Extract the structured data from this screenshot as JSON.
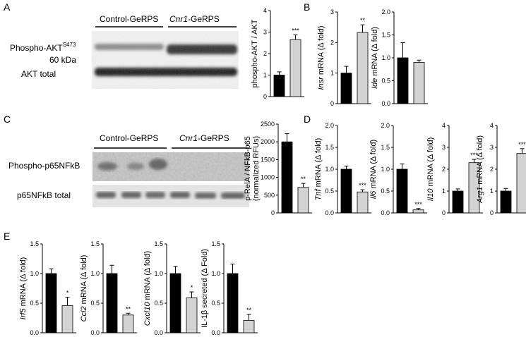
{
  "panels": {
    "A": {
      "letter": "A",
      "blot": {
        "groups": [
          {
            "text": "Control-GeRPS",
            "italic": ""
          },
          {
            "text": "-GeRPS",
            "italic": "Cnr1"
          }
        ],
        "rows": [
          {
            "label": "Phospho-AKT",
            "sup": "S473",
            "sub_label": "60 kDa"
          },
          {
            "label": "AKT total",
            "sup": "",
            "sub_label": ""
          }
        ]
      }
    },
    "B": {
      "letter": "B"
    },
    "C": {
      "letter": "C",
      "blot": {
        "groups": [
          {
            "text": "Control-GeRPS",
            "italic": ""
          },
          {
            "text": "-GeRPS",
            "italic": "Cnr1"
          }
        ],
        "rows": [
          {
            "label": "Phospho-p65NFkB"
          },
          {
            "label": "p65NFkB total"
          }
        ]
      }
    },
    "D": {
      "letter": "D"
    },
    "E": {
      "letter": "E"
    }
  },
  "colors": {
    "control": "#000000",
    "cnr1": "#d3d3d3"
  },
  "chart_data": [
    {
      "id": "A1",
      "type": "bar",
      "ylabel": "phospho-AKT / AKT",
      "ylim": [
        0,
        4
      ],
      "yticks": [
        0,
        1,
        2,
        3,
        4
      ],
      "values": [
        1.0,
        2.65
      ],
      "errors": [
        0.15,
        0.22
      ],
      "stars": [
        "",
        "***"
      ]
    },
    {
      "id": "B1",
      "type": "bar",
      "ylabel_italic": "Insr",
      "ylabel": " mRNA (Δ fold)",
      "ylim": [
        0,
        3
      ],
      "yticks": [
        0,
        1,
        2,
        3
      ],
      "values": [
        1.0,
        2.33
      ],
      "errors": [
        0.22,
        0.25
      ],
      "stars": [
        "",
        "**"
      ]
    },
    {
      "id": "B2",
      "type": "bar",
      "ylabel_italic": "Ide",
      "ylabel": " mRNA (Δ fold)",
      "ylim": [
        0,
        2.0
      ],
      "yticks": [
        0,
        0.5,
        1.0,
        1.5,
        2.0
      ],
      "yticklabels": [
        "0.0",
        "0.5",
        "1.0",
        "1.5",
        "2.0"
      ],
      "values": [
        1.0,
        0.9
      ],
      "errors": [
        0.33,
        0.05
      ],
      "stars": [
        "",
        ""
      ]
    },
    {
      "id": "C1",
      "type": "bar",
      "ylabel": "p-RelA / NFkB-p65",
      "ylabel2": "(normalized RFUs)",
      "ylim": [
        0,
        2500
      ],
      "yticks": [
        0,
        500,
        1000,
        1500,
        2000,
        2500
      ],
      "values": [
        2000,
        720
      ],
      "errors": [
        230,
        110
      ],
      "stars": [
        "",
        "**"
      ]
    },
    {
      "id": "D1",
      "type": "bar",
      "ylabel_italic": "Tnf",
      "ylabel": " mRNA (Δ fold)",
      "ylim": [
        0,
        2.0
      ],
      "yticks": [
        0,
        0.5,
        1.0,
        1.5,
        2.0
      ],
      "yticklabels": [
        "0.0",
        "0.5",
        "1.0",
        "1.5",
        "2.0"
      ],
      "values": [
        1.0,
        0.48
      ],
      "errors": [
        0.07,
        0.05
      ],
      "stars": [
        "",
        "***"
      ]
    },
    {
      "id": "D2",
      "type": "bar",
      "ylabel_italic": "Il6",
      "ylabel": " mRNA (Δ fold)",
      "ylim": [
        0,
        2.0
      ],
      "yticks": [
        0,
        0.5,
        1.0,
        1.5,
        2.0
      ],
      "yticklabels": [
        "0.0",
        "0.5",
        "1.0",
        "1.5",
        "2.0"
      ],
      "values": [
        1.0,
        0.07
      ],
      "errors": [
        0.12,
        0.03
      ],
      "stars": [
        "",
        "***"
      ]
    },
    {
      "id": "D3",
      "type": "bar",
      "ylabel_italic": "Il10",
      "ylabel": " mRNA (Δ fold)",
      "ylim": [
        0,
        4
      ],
      "yticks": [
        0,
        1,
        2,
        3,
        4
      ],
      "values": [
        1.0,
        2.3
      ],
      "errors": [
        0.1,
        0.15
      ],
      "stars": [
        "",
        "***"
      ]
    },
    {
      "id": "D4",
      "type": "bar",
      "ylabel_italic": "Arg1",
      "ylabel": " mRNA (Δ fold)",
      "ylim": [
        0,
        4
      ],
      "yticks": [
        0,
        1,
        2,
        3,
        4
      ],
      "values": [
        1.0,
        2.72
      ],
      "errors": [
        0.12,
        0.22
      ],
      "stars": [
        "",
        "***"
      ]
    },
    {
      "id": "E1",
      "type": "bar",
      "ylabel_italic": "Irf5",
      "ylabel": " mRNA (Δ fold)",
      "ylim": [
        0,
        1.5
      ],
      "yticks": [
        0,
        0.5,
        1.0,
        1.5
      ],
      "yticklabels": [
        "0.0",
        "0.5",
        "1.0",
        "1.5"
      ],
      "values": [
        1.0,
        0.46
      ],
      "errors": [
        0.08,
        0.14
      ],
      "stars": [
        "",
        "*"
      ]
    },
    {
      "id": "E2",
      "type": "bar",
      "ylabel_italic": "Ccl2",
      "ylabel": " mRNA (Δ fold)",
      "ylim": [
        0,
        1.5
      ],
      "yticks": [
        0,
        0.5,
        1.0,
        1.5
      ],
      "yticklabels": [
        "0.0",
        "0.5",
        "1.0",
        "1.5"
      ],
      "values": [
        1.0,
        0.3
      ],
      "errors": [
        0.14,
        0.03
      ],
      "stars": [
        "",
        "**"
      ]
    },
    {
      "id": "E3",
      "type": "bar",
      "ylabel_italic": "Cxcl10",
      "ylabel": " mRNA (Δ fold)",
      "ylim": [
        0,
        1.5
      ],
      "yticks": [
        0,
        0.5,
        1.0,
        1.5
      ],
      "yticklabels": [
        "0.0",
        "0.5",
        "1.0",
        "1.5"
      ],
      "values": [
        1.0,
        0.59
      ],
      "errors": [
        0.12,
        0.1
      ],
      "stars": [
        "",
        "*"
      ]
    },
    {
      "id": "E4",
      "type": "bar",
      "ylabel": "IL-1β secreted (Δ Fold)",
      "ylim": [
        0,
        1.5
      ],
      "yticks": [
        0,
        0.5,
        1.0,
        1.5
      ],
      "yticklabels": [
        "0.0",
        "0.5",
        "1.0",
        "1.5"
      ],
      "values": [
        1.0,
        0.21
      ],
      "errors": [
        0.16,
        0.1
      ],
      "stars": [
        "",
        "**"
      ]
    }
  ]
}
